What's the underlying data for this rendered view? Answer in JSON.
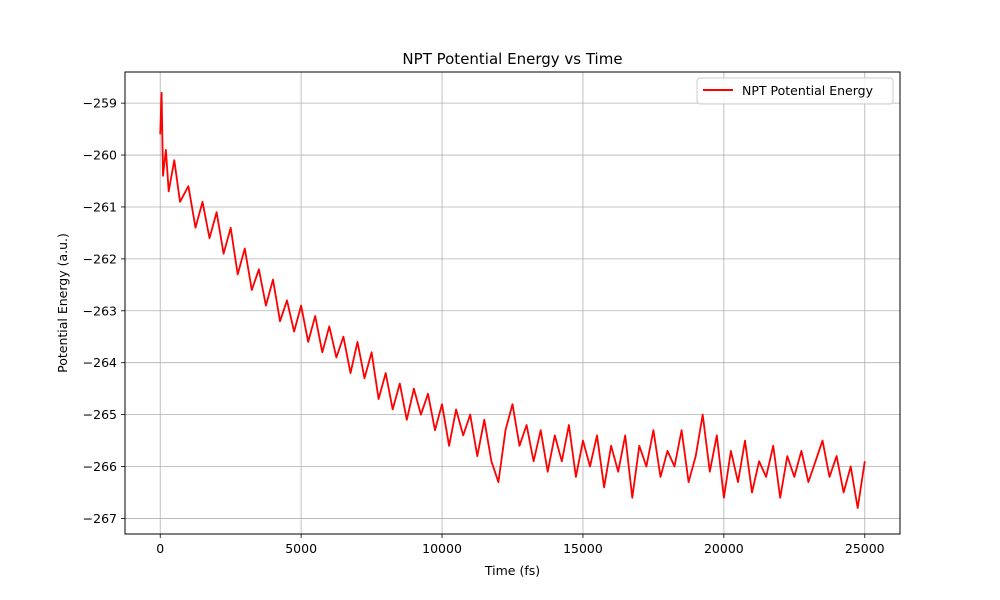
{
  "chart_data": {
    "type": "line",
    "title": "NPT Potential Energy vs Time",
    "xlabel": "Time (fs)",
    "ylabel": "Potential Energy (a.u.)",
    "xlim": [
      -1250,
      26250
    ],
    "ylim": [
      -267.3,
      -258.4
    ],
    "x_ticks": [
      0,
      5000,
      10000,
      15000,
      20000,
      25000
    ],
    "y_ticks": [
      -267,
      -266,
      -265,
      -264,
      -263,
      -262,
      -261,
      -260,
      -259
    ],
    "x_tick_labels": [
      "0",
      "5000",
      "10000",
      "15000",
      "20000",
      "25000"
    ],
    "y_tick_labels": [
      "−267",
      "−266",
      "−265",
      "−264",
      "−263",
      "−262",
      "−261",
      "−260",
      "−259"
    ],
    "grid": true,
    "legend_position": "top-right",
    "series": [
      {
        "name": "NPT Potential Energy",
        "color": "#ff0000",
        "x": [
          0,
          50,
          100,
          200,
          300,
          500,
          700,
          1000,
          1250,
          1500,
          1750,
          2000,
          2250,
          2500,
          2750,
          3000,
          3250,
          3500,
          3750,
          4000,
          4250,
          4500,
          4750,
          5000,
          5250,
          5500,
          5750,
          6000,
          6250,
          6500,
          6750,
          7000,
          7250,
          7500,
          7750,
          8000,
          8250,
          8500,
          8750,
          9000,
          9250,
          9500,
          9750,
          10000,
          10250,
          10500,
          10750,
          11000,
          11250,
          11500,
          11750,
          12000,
          12250,
          12500,
          12750,
          13000,
          13250,
          13500,
          13750,
          14000,
          14250,
          14500,
          14750,
          15000,
          15250,
          15500,
          15750,
          16000,
          16250,
          16500,
          16750,
          17000,
          17250,
          17500,
          17750,
          18000,
          18250,
          18500,
          18750,
          19000,
          19250,
          19500,
          19750,
          20000,
          20250,
          20500,
          20750,
          21000,
          21250,
          21500,
          21750,
          22000,
          22250,
          22500,
          22750,
          23000,
          23250,
          23500,
          23750,
          24000,
          24250,
          24500,
          24750,
          25000
        ],
        "values": [
          -259.6,
          -258.8,
          -260.4,
          -259.9,
          -260.7,
          -260.1,
          -260.9,
          -260.6,
          -261.4,
          -260.9,
          -261.6,
          -261.1,
          -261.9,
          -261.4,
          -262.3,
          -261.8,
          -262.6,
          -262.2,
          -262.9,
          -262.4,
          -263.2,
          -262.8,
          -263.4,
          -262.9,
          -263.6,
          -263.1,
          -263.8,
          -263.3,
          -263.9,
          -263.5,
          -264.2,
          -263.6,
          -264.3,
          -263.8,
          -264.7,
          -264.2,
          -264.9,
          -264.4,
          -265.1,
          -264.5,
          -265.0,
          -264.6,
          -265.3,
          -264.8,
          -265.6,
          -264.9,
          -265.4,
          -265.0,
          -265.8,
          -265.1,
          -265.9,
          -266.3,
          -265.3,
          -264.8,
          -265.6,
          -265.2,
          -265.9,
          -265.3,
          -266.1,
          -265.4,
          -265.9,
          -265.2,
          -266.2,
          -265.5,
          -266.0,
          -265.4,
          -266.4,
          -265.6,
          -266.1,
          -265.4,
          -266.6,
          -265.6,
          -266.0,
          -265.3,
          -266.2,
          -265.7,
          -266.0,
          -265.3,
          -266.3,
          -265.8,
          -265.0,
          -266.1,
          -265.4,
          -266.6,
          -265.7,
          -266.3,
          -265.5,
          -266.5,
          -265.9,
          -266.2,
          -265.6,
          -266.6,
          -265.8,
          -266.2,
          -265.7,
          -266.3,
          -265.9,
          -265.5,
          -266.2,
          -265.8,
          -266.5,
          -266.0,
          -266.8,
          -265.9
        ]
      }
    ]
  }
}
